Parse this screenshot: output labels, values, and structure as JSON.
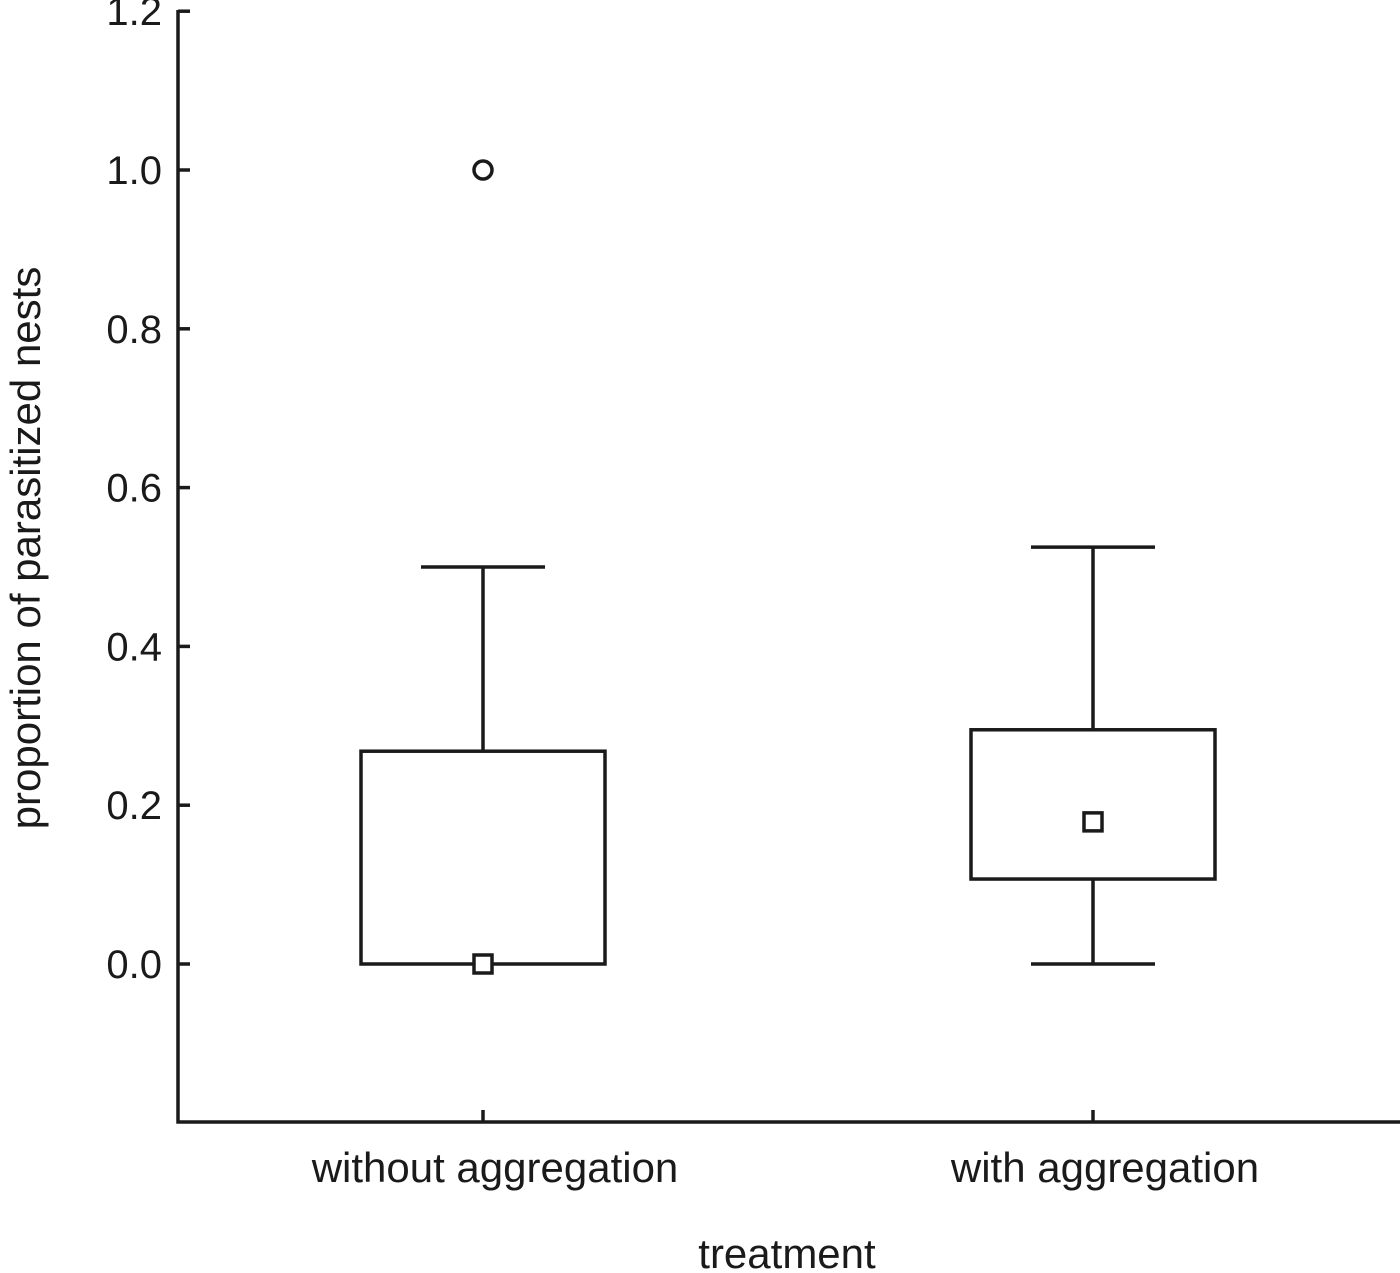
{
  "chart_data": {
    "type": "boxplot",
    "title": "",
    "xlabel": "treatment",
    "ylabel": "proportion of parasitized nests",
    "ylim": [
      -0.2,
      1.2
    ],
    "yticks": [
      "0.0",
      "0.2",
      "0.4",
      "0.6",
      "0.8",
      "1.0",
      "1.2"
    ],
    "ytick_values": [
      0,
      0.2,
      0.4,
      0.6,
      0.8,
      1.0,
      1.2
    ],
    "grid": false,
    "categories": [
      "without aggregation",
      "with aggregation"
    ],
    "boxes": [
      {
        "category": "without aggregation",
        "whisker_low": 0.0,
        "q1": 0.0,
        "median": 0.0,
        "q3": 0.268,
        "whisker_high": 0.5,
        "outliers": [
          1.0
        ]
      },
      {
        "category": "with aggregation",
        "whisker_low": 0.0,
        "q1": 0.107,
        "median": 0.179,
        "q3": 0.295,
        "whisker_high": 0.525,
        "outliers": []
      }
    ]
  }
}
